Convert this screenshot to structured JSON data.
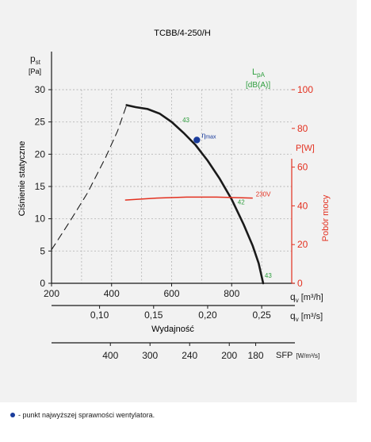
{
  "chart_data": {
    "type": "line",
    "title": "TCBB/4-250/H",
    "ylabel": "Ciśnienie statyczne",
    "xlabel": "Wydajność",
    "y_unit_symbol": "p",
    "y_unit_sub": "st",
    "y_unit": "[Pa]",
    "ylim": [
      0,
      30
    ],
    "yticks": [
      "0",
      "5",
      "10",
      "15",
      "20",
      "25",
      "30"
    ],
    "x_primary": {
      "label": "q",
      "sub": "v",
      "unit": "[m³/h]",
      "lim": [
        200,
        1000
      ],
      "ticks": [
        "200",
        "400",
        "600",
        "800"
      ]
    },
    "x_secondary": {
      "label": "q",
      "sub": "v",
      "unit": "[m³/s]",
      "ticks": [
        "0,10",
        "0,15",
        "0,20",
        "0,25"
      ],
      "values": [
        0.1,
        0.15,
        0.2,
        0.25
      ]
    },
    "x_sfp": {
      "label": "SFP",
      "unit": "[W/m³/s]",
      "ticks": [
        "400",
        "300",
        "240",
        "200",
        "180"
      ],
      "values": [
        400,
        300,
        240,
        200,
        180
      ]
    },
    "y2": {
      "label": "Pobór mocy",
      "unit": "P[W]",
      "lim": [
        0,
        100
      ],
      "ticks": [
        "0",
        "20",
        "40",
        "60",
        "80",
        "100"
      ]
    },
    "noise_label": "L",
    "noise_sub": "pA",
    "noise_unit": "[dB(A)]",
    "series": [
      {
        "color": "#1a1a1a",
        "x": [
          450,
          480,
          520,
          560,
          600,
          640,
          680,
          720,
          760,
          800,
          840,
          870,
          890,
          905
        ],
        "y": [
          27.6,
          27.3,
          27.0,
          26.3,
          25.0,
          23.3,
          21.4,
          19.0,
          16.2,
          13.0,
          9.1,
          5.8,
          3.1,
          0
        ]
      },
      {
        "style": "dashed",
        "color": "#1a1a1a",
        "x": [
          200,
          260,
          320,
          380,
          420,
          450
        ],
        "y": [
          5.2,
          9.5,
          14.0,
          19.5,
          23.6,
          27.6
        ]
      }
    ],
    "power_series": {
      "color": "#e3301f",
      "label": "230V",
      "x": [
        445,
        550,
        650,
        750,
        870
      ],
      "y": [
        43,
        44,
        44.5,
        44.5,
        44
      ]
    },
    "noise_points": [
      {
        "label": "43",
        "x": 628,
        "y": 25.3
      },
      {
        "label": "42",
        "x": 812,
        "y": 12.6
      },
      {
        "label": "43",
        "x": 902,
        "y": 1.2
      }
    ],
    "eta_max": {
      "label": "η",
      "sub": "max",
      "x": 684,
      "y": 22.2
    },
    "footnote": "- punkt najwyższej sprawności wentylatora."
  }
}
